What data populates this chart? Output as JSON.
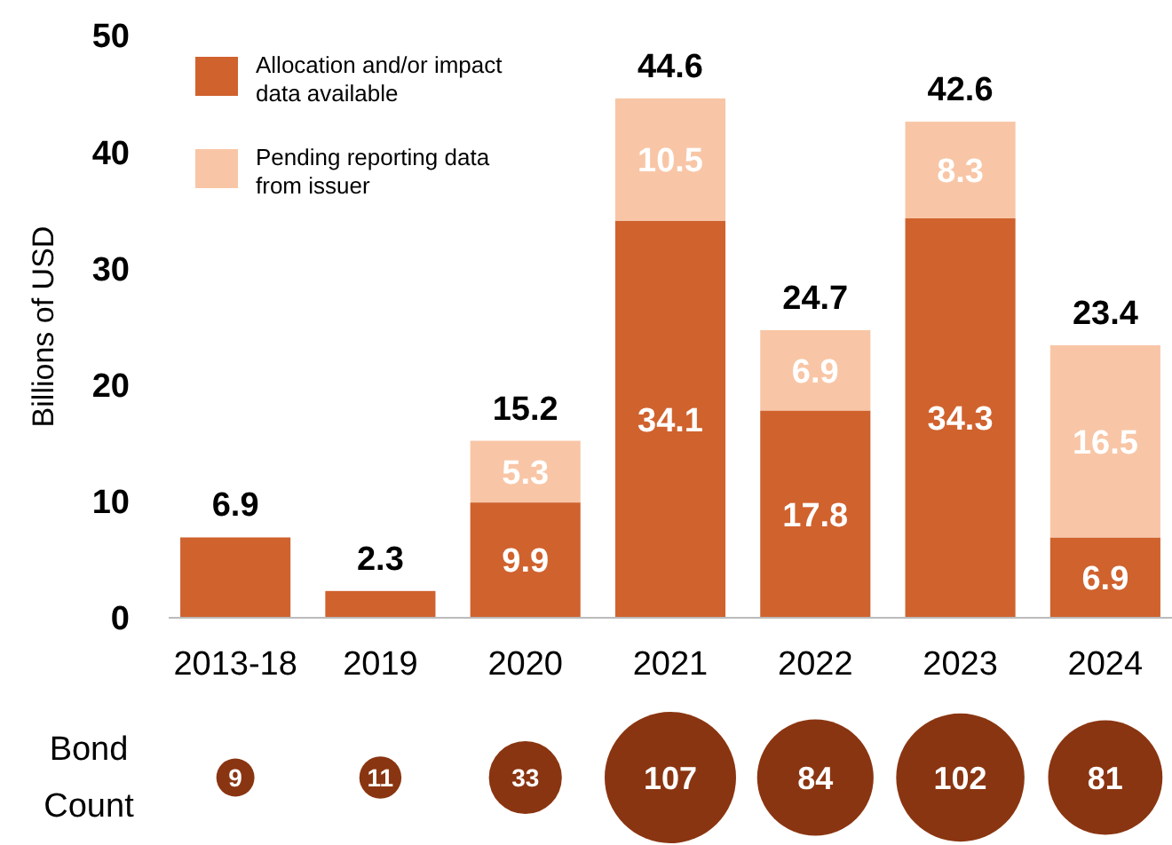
{
  "chart_data": [
    {
      "type": "bar",
      "stacked": true,
      "ylabel": "Billions of USD",
      "categories": [
        "2013-18",
        "2019",
        "2020",
        "2021",
        "2022",
        "2023",
        "2024"
      ],
      "ylim": [
        0,
        50
      ],
      "yticks": [
        0,
        10,
        20,
        30,
        40,
        50
      ],
      "legend": "top left",
      "grid": false,
      "series": [
        {
          "name": "Allocation and/or impact data available",
          "color": "#d0622e",
          "values": [
            6.9,
            2.3,
            9.9,
            34.1,
            17.8,
            34.3,
            6.9
          ],
          "value_labels": [
            null,
            null,
            "9.9",
            "34.1",
            "17.8",
            "34.3",
            "6.9"
          ]
        },
        {
          "name": "Pending reporting data from issuer",
          "color": "#f8c6a6",
          "values": [
            null,
            null,
            5.3,
            10.5,
            6.9,
            8.3,
            16.5
          ],
          "value_labels": [
            null,
            null,
            "5.3",
            "10.5",
            "6.9",
            "8.3",
            "16.5"
          ]
        }
      ],
      "totals": [
        "6.9",
        "2.3",
        "15.2",
        "44.6",
        "24.7",
        "42.6",
        "23.4"
      ]
    },
    {
      "type": "other",
      "ylabel": "Bond Count",
      "annotations": [
        "9",
        "11",
        "33",
        "107",
        "84",
        "102",
        "81"
      ]
    }
  ]
}
